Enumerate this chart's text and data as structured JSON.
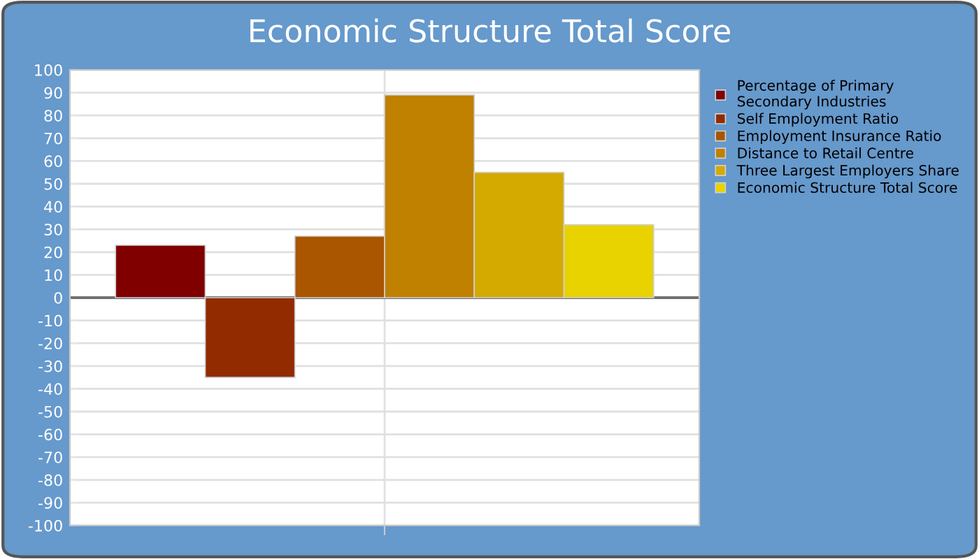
{
  "chart_data": {
    "type": "bar",
    "title": "Economic Structure Total Score",
    "categories": [
      null
    ],
    "series": [
      {
        "name": "Percentage of Primary\nSecondary Industries",
        "color": "#800000",
        "values": [
          23
        ]
      },
      {
        "name": "Self Employment Ratio",
        "color": "#922b00",
        "values": [
          -35
        ]
      },
      {
        "name": "Employment Insurance Ratio",
        "color": "#aa5500",
        "values": [
          27
        ]
      },
      {
        "name": "Distance to Retail Centre",
        "color": "#c08000",
        "values": [
          89
        ]
      },
      {
        "name": "Three Largest Employers Share",
        "color": "#d4aa00",
        "values": [
          55
        ]
      },
      {
        "name": "Economic Structure Total Score",
        "color": "#e8d200",
        "values": [
          32
        ]
      }
    ],
    "ylim": [
      -100,
      100
    ],
    "yticks": [
      -100,
      -90,
      -80,
      -70,
      -60,
      -50,
      -40,
      -30,
      -20,
      -10,
      0,
      10,
      20,
      30,
      40,
      50,
      60,
      70,
      80,
      90,
      100
    ],
    "grid": true,
    "legend": "right"
  }
}
